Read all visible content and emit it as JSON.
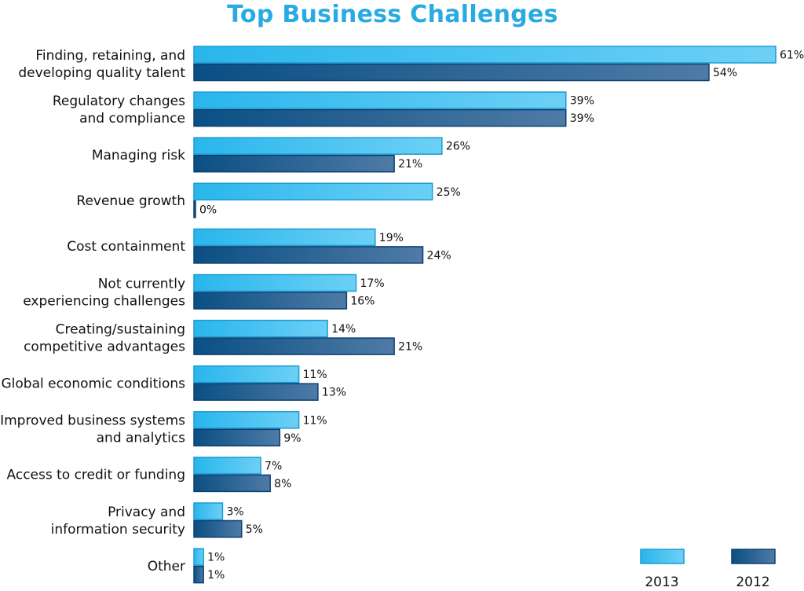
{
  "chart_data": {
    "type": "bar",
    "orientation": "horizontal",
    "title": "Top Business Challenges",
    "value_suffix": "%",
    "xlim": [
      0,
      61
    ],
    "grid": false,
    "legend_position": "bottom-right",
    "categories": [
      [
        "Finding, retaining, and",
        "developing quality talent"
      ],
      [
        "Regulatory changes",
        "and compliance"
      ],
      [
        "Managing risk"
      ],
      [
        "Revenue growth"
      ],
      [
        "Cost containment"
      ],
      [
        "Not currently",
        "experiencing challenges"
      ],
      [
        "Creating/sustaining",
        "competitive advantages"
      ],
      [
        "Global economic conditions"
      ],
      [
        "Improved business systems",
        "and analytics"
      ],
      [
        "Access to credit or funding"
      ],
      [
        "Privacy and",
        "information security"
      ],
      [
        "Other"
      ]
    ],
    "series": [
      {
        "name": "2013",
        "color_start": "#29b6ec",
        "color_end": "#6dd0f5",
        "stroke": "#1a9bd4",
        "values": [
          61,
          39,
          26,
          25,
          19,
          17,
          14,
          11,
          11,
          7,
          3,
          1
        ]
      },
      {
        "name": "2012",
        "color_start": "#0a4f84",
        "color_end": "#4f7ba6",
        "stroke": "#0c3f6e",
        "values": [
          54,
          39,
          21,
          0,
          24,
          16,
          21,
          13,
          9,
          8,
          5,
          1
        ]
      }
    ]
  }
}
